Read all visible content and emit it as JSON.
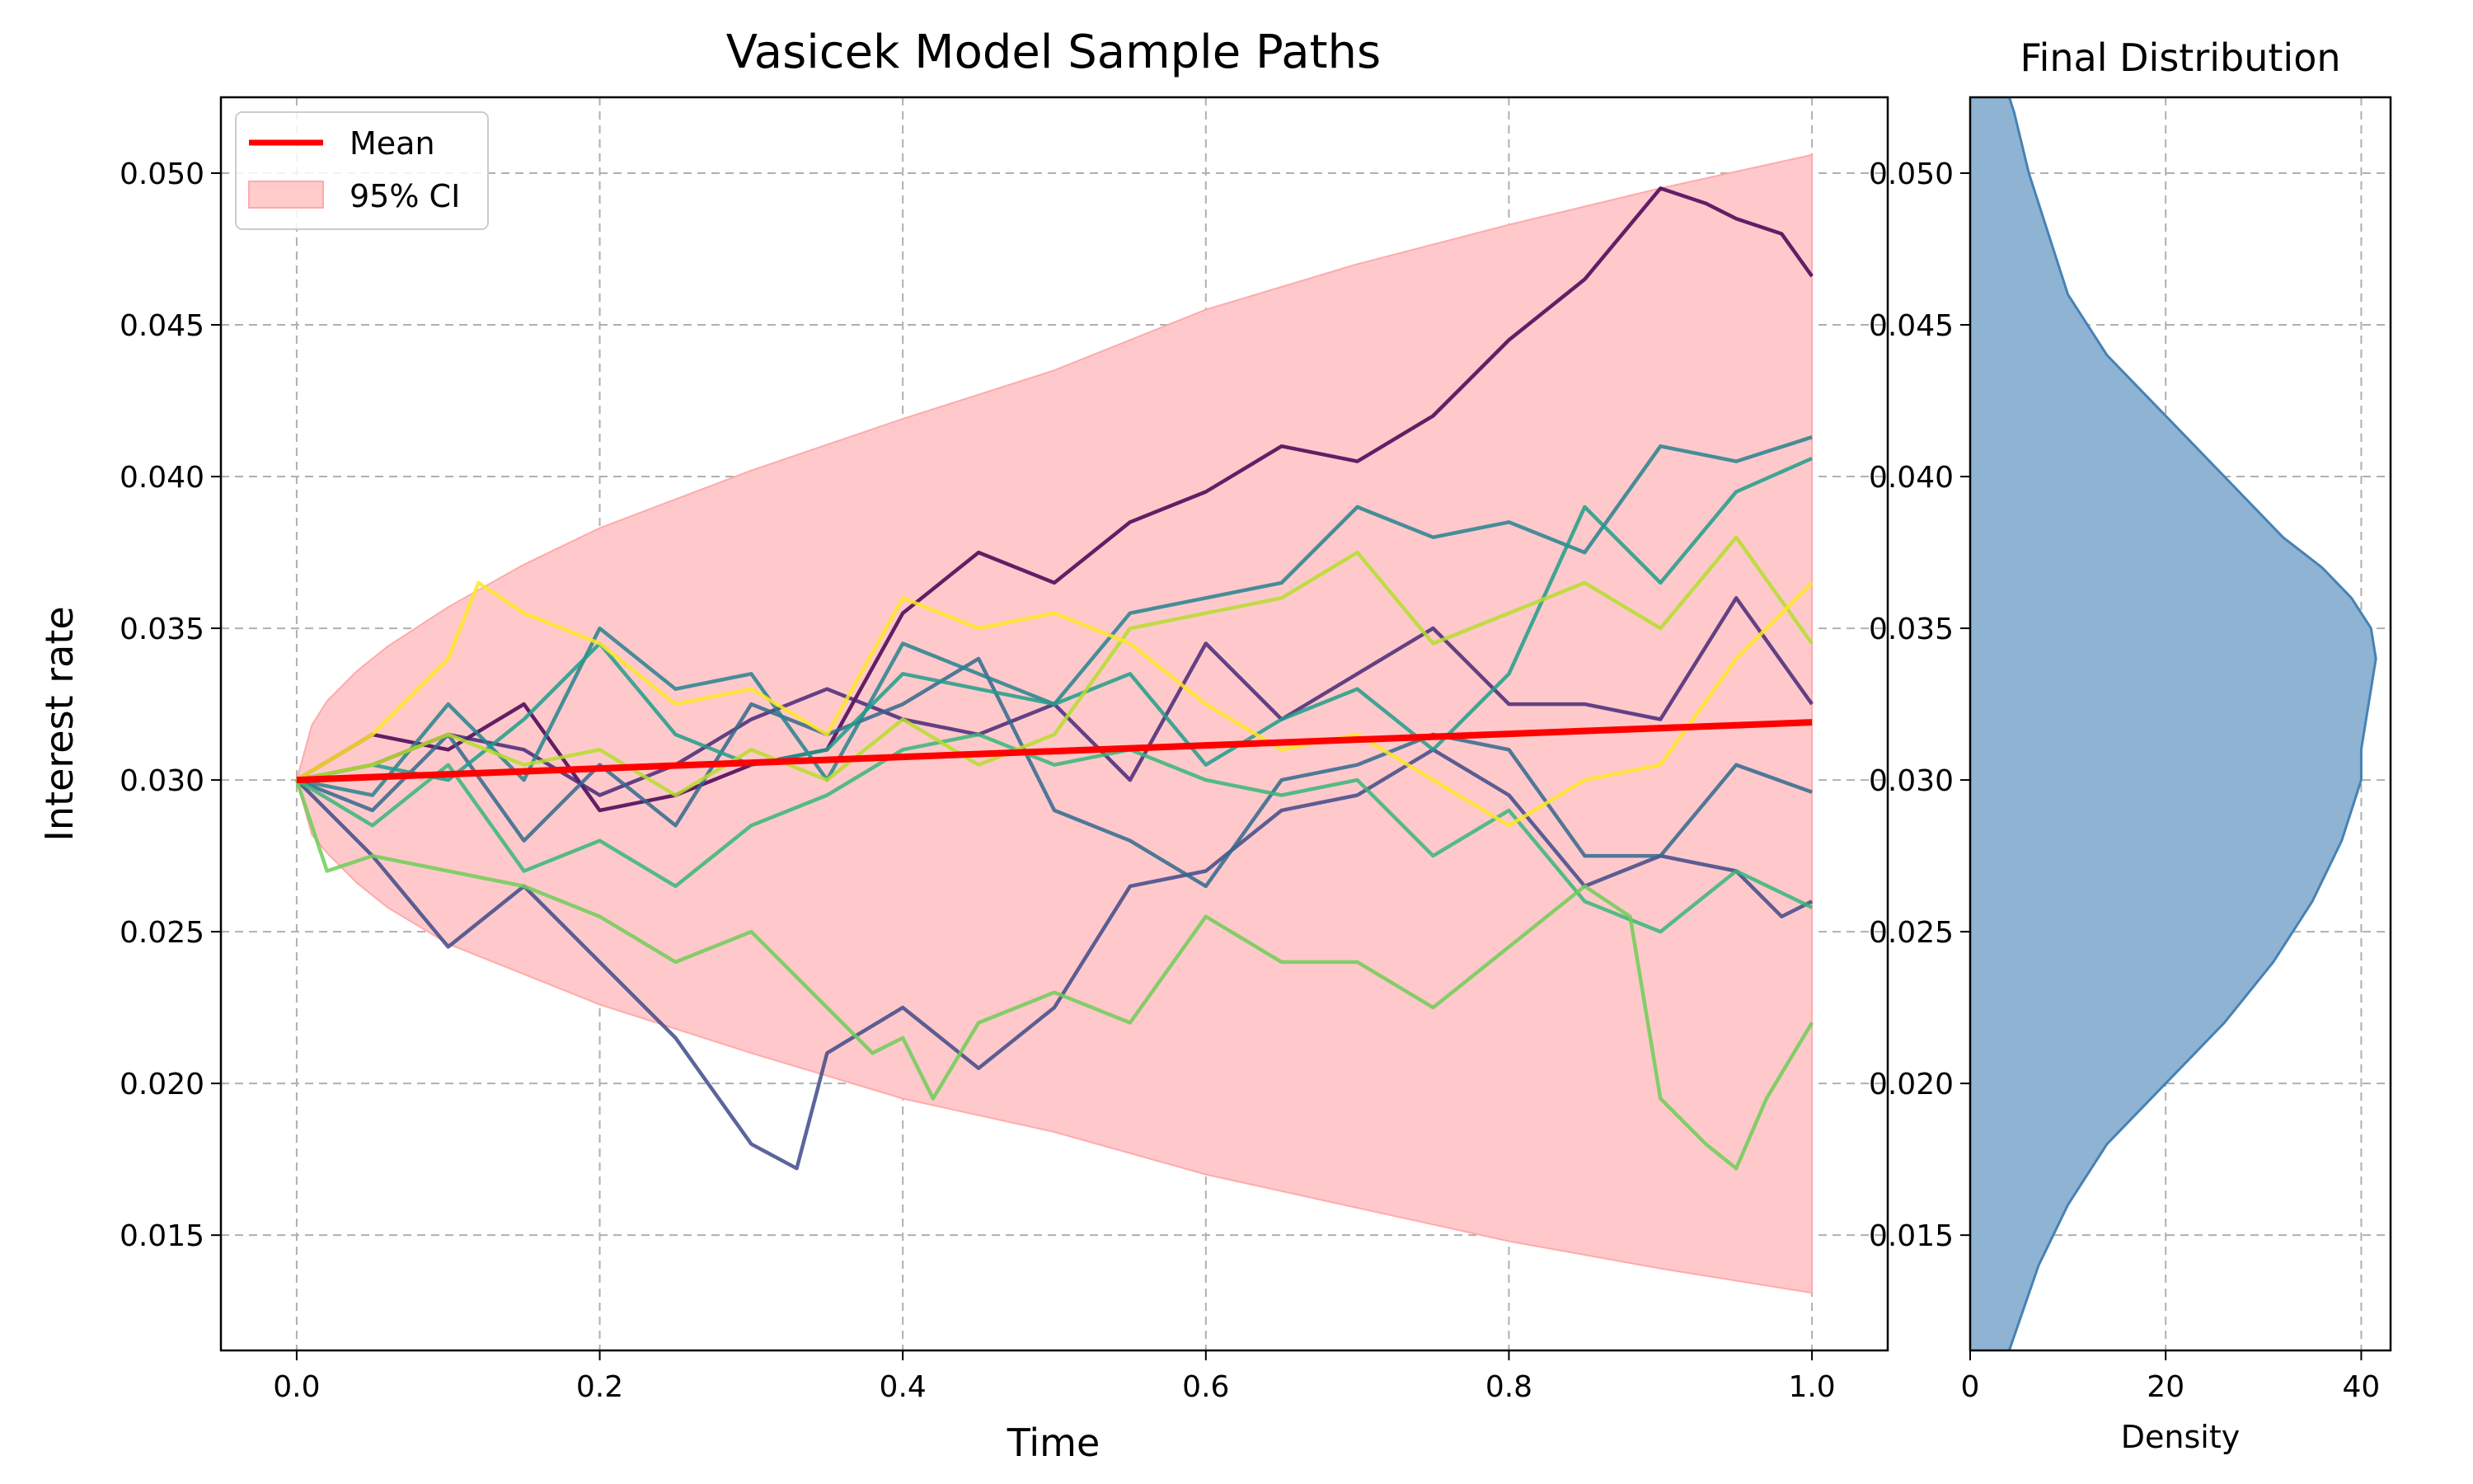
{
  "chart_data": [
    {
      "type": "line",
      "title": "Vasicek Model Sample Paths",
      "xlabel": "Time",
      "ylabel": "Interest rate",
      "xlim": [
        -0.05,
        1.05
      ],
      "ylim": [
        0.0112,
        0.0525
      ],
      "xticks": [
        0.0,
        0.2,
        0.4,
        0.6,
        0.8,
        1.0
      ],
      "xtick_labels": [
        "0.0",
        "0.2",
        "0.4",
        "0.6",
        "0.8",
        "1.0"
      ],
      "yticks": [
        0.015,
        0.02,
        0.025,
        0.03,
        0.035,
        0.04,
        0.045,
        0.05
      ],
      "ytick_labels": [
        "0.015",
        "0.020",
        "0.025",
        "0.030",
        "0.035",
        "0.040",
        "0.045",
        "0.050"
      ],
      "grid": true,
      "legend": {
        "placement": "top-left",
        "entries": [
          {
            "label": "Mean",
            "color": "#ff0000",
            "kind": "line"
          },
          {
            "label": "95% CI",
            "color": "#ffcbcb",
            "kind": "patch"
          }
        ]
      },
      "mean": {
        "name": "Mean",
        "color": "#ff0000",
        "x": [
          0.0,
          1.0
        ],
        "y": [
          0.03,
          0.0319
        ]
      },
      "ci": {
        "name": "95% CI",
        "color": "#ffc9cb",
        "edge_color": "#ffaaaa",
        "x": [
          0.0,
          0.01,
          0.02,
          0.04,
          0.06,
          0.1,
          0.15,
          0.2,
          0.3,
          0.4,
          0.5,
          0.6,
          0.7,
          0.8,
          0.9,
          1.0
        ],
        "upper": [
          0.03,
          0.0318,
          0.0326,
          0.0336,
          0.0344,
          0.0357,
          0.0371,
          0.0383,
          0.0402,
          0.0419,
          0.0435,
          0.0455,
          0.047,
          0.0483,
          0.0495,
          0.0506
        ],
        "lower": [
          0.03,
          0.0282,
          0.0276,
          0.0266,
          0.0258,
          0.0246,
          0.0236,
          0.0226,
          0.021,
          0.0195,
          0.0184,
          0.017,
          0.0159,
          0.0148,
          0.0139,
          0.0131
        ]
      },
      "series": [
        {
          "color": "#440154",
          "x": [
            0,
            0.05,
            0.1,
            0.15,
            0.2,
            0.25,
            0.3,
            0.35,
            0.4,
            0.45,
            0.5,
            0.55,
            0.6,
            0.65,
            0.7,
            0.75,
            0.8,
            0.85,
            0.9,
            0.93,
            0.95,
            0.98,
            1.0
          ],
          "y": [
            0.03,
            0.0315,
            0.031,
            0.0325,
            0.029,
            0.0295,
            0.0305,
            0.031,
            0.0355,
            0.0375,
            0.0365,
            0.0385,
            0.0395,
            0.041,
            0.0405,
            0.042,
            0.0445,
            0.0465,
            0.0495,
            0.049,
            0.0485,
            0.048,
            0.0466
          ]
        },
        {
          "color": "#482878",
          "x": [
            0,
            0.05,
            0.1,
            0.15,
            0.2,
            0.25,
            0.3,
            0.35,
            0.4,
            0.45,
            0.5,
            0.55,
            0.6,
            0.65,
            0.7,
            0.75,
            0.8,
            0.85,
            0.9,
            0.95,
            1.0
          ],
          "y": [
            0.03,
            0.0305,
            0.0315,
            0.031,
            0.0295,
            0.0305,
            0.032,
            0.033,
            0.032,
            0.0315,
            0.0325,
            0.03,
            0.0345,
            0.032,
            0.0335,
            0.035,
            0.0325,
            0.0325,
            0.032,
            0.036,
            0.0325
          ]
        },
        {
          "color": "#3e4a89",
          "x": [
            0,
            0.05,
            0.1,
            0.15,
            0.2,
            0.25,
            0.3,
            0.33,
            0.35,
            0.4,
            0.45,
            0.5,
            0.55,
            0.6,
            0.65,
            0.7,
            0.75,
            0.8,
            0.85,
            0.9,
            0.95,
            0.98,
            1.0
          ],
          "y": [
            0.03,
            0.0275,
            0.0245,
            0.0265,
            0.024,
            0.0215,
            0.018,
            0.0172,
            0.021,
            0.0225,
            0.0205,
            0.0225,
            0.0265,
            0.027,
            0.029,
            0.0295,
            0.031,
            0.0295,
            0.0265,
            0.0275,
            0.027,
            0.0255,
            0.026
          ]
        },
        {
          "color": "#31688e",
          "x": [
            0,
            0.05,
            0.1,
            0.15,
            0.2,
            0.25,
            0.3,
            0.35,
            0.4,
            0.45,
            0.5,
            0.55,
            0.6,
            0.65,
            0.7,
            0.75,
            0.8,
            0.85,
            0.9,
            0.95,
            1.0
          ],
          "y": [
            0.03,
            0.029,
            0.0315,
            0.028,
            0.0305,
            0.0285,
            0.0325,
            0.0315,
            0.0325,
            0.034,
            0.029,
            0.028,
            0.0265,
            0.03,
            0.0305,
            0.0315,
            0.031,
            0.0275,
            0.0275,
            0.0305,
            0.0296
          ]
        },
        {
          "color": "#26828e",
          "x": [
            0,
            0.05,
            0.1,
            0.15,
            0.2,
            0.25,
            0.3,
            0.35,
            0.4,
            0.45,
            0.5,
            0.55,
            0.6,
            0.65,
            0.7,
            0.75,
            0.8,
            0.85,
            0.9,
            0.95,
            1.0
          ],
          "y": [
            0.03,
            0.0295,
            0.0325,
            0.03,
            0.035,
            0.033,
            0.0335,
            0.03,
            0.0345,
            0.0335,
            0.0325,
            0.0355,
            0.036,
            0.0365,
            0.039,
            0.038,
            0.0385,
            0.0375,
            0.041,
            0.0405,
            0.0413
          ]
        },
        {
          "color": "#1f9e89",
          "x": [
            0,
            0.05,
            0.1,
            0.15,
            0.2,
            0.25,
            0.3,
            0.35,
            0.4,
            0.45,
            0.5,
            0.55,
            0.6,
            0.65,
            0.7,
            0.75,
            0.8,
            0.85,
            0.9,
            0.95,
            1.0
          ],
          "y": [
            0.03,
            0.0305,
            0.03,
            0.032,
            0.0345,
            0.0315,
            0.0305,
            0.031,
            0.0335,
            0.033,
            0.0325,
            0.0335,
            0.0305,
            0.032,
            0.033,
            0.031,
            0.0335,
            0.039,
            0.0365,
            0.0395,
            0.0406
          ]
        },
        {
          "color": "#35b779",
          "x": [
            0,
            0.05,
            0.1,
            0.15,
            0.2,
            0.25,
            0.3,
            0.35,
            0.4,
            0.45,
            0.5,
            0.55,
            0.6,
            0.65,
            0.7,
            0.75,
            0.8,
            0.85,
            0.9,
            0.95,
            1.0
          ],
          "y": [
            0.03,
            0.0285,
            0.0305,
            0.027,
            0.028,
            0.0265,
            0.0285,
            0.0295,
            0.031,
            0.0315,
            0.0305,
            0.031,
            0.03,
            0.0295,
            0.03,
            0.0275,
            0.029,
            0.026,
            0.025,
            0.027,
            0.0258
          ]
        },
        {
          "color": "#6ece58",
          "x": [
            0,
            0.02,
            0.05,
            0.1,
            0.15,
            0.2,
            0.25,
            0.3,
            0.35,
            0.38,
            0.4,
            0.42,
            0.45,
            0.5,
            0.55,
            0.6,
            0.65,
            0.7,
            0.75,
            0.8,
            0.85,
            0.88,
            0.9,
            0.93,
            0.95,
            0.97,
            1.0
          ],
          "y": [
            0.03,
            0.027,
            0.0275,
            0.027,
            0.0265,
            0.0255,
            0.024,
            0.025,
            0.0225,
            0.021,
            0.0215,
            0.0195,
            0.022,
            0.023,
            0.022,
            0.0255,
            0.024,
            0.024,
            0.0225,
            0.0245,
            0.0265,
            0.0255,
            0.0195,
            0.018,
            0.0172,
            0.0195,
            0.022
          ]
        },
        {
          "color": "#b5de2b",
          "x": [
            0,
            0.05,
            0.1,
            0.15,
            0.2,
            0.25,
            0.3,
            0.35,
            0.4,
            0.45,
            0.5,
            0.55,
            0.6,
            0.65,
            0.7,
            0.75,
            0.8,
            0.85,
            0.9,
            0.95,
            1.0
          ],
          "y": [
            0.03,
            0.0305,
            0.0315,
            0.0305,
            0.031,
            0.0295,
            0.031,
            0.03,
            0.032,
            0.0305,
            0.0315,
            0.035,
            0.0355,
            0.036,
            0.0375,
            0.0345,
            0.0355,
            0.0365,
            0.035,
            0.038,
            0.0345
          ]
        },
        {
          "color": "#fde725",
          "x": [
            0,
            0.05,
            0.1,
            0.12,
            0.15,
            0.2,
            0.25,
            0.3,
            0.35,
            0.4,
            0.45,
            0.5,
            0.55,
            0.6,
            0.65,
            0.7,
            0.75,
            0.8,
            0.85,
            0.9,
            0.95,
            1.0
          ],
          "y": [
            0.03,
            0.0315,
            0.034,
            0.0365,
            0.0355,
            0.0345,
            0.0325,
            0.033,
            0.0315,
            0.036,
            0.035,
            0.0355,
            0.0345,
            0.0325,
            0.031,
            0.0315,
            0.03,
            0.0285,
            0.03,
            0.0305,
            0.034,
            0.0365
          ]
        }
      ]
    },
    {
      "type": "area",
      "title": "Final Distribution",
      "xlabel": "Density",
      "ylabel": "",
      "orientation": "horizontal",
      "xlim": [
        0,
        43
      ],
      "ylim": [
        0.0112,
        0.0525
      ],
      "xticks": [
        0,
        20,
        40
      ],
      "xtick_labels": [
        "0",
        "20",
        "40"
      ],
      "yticks": [
        0.015,
        0.02,
        0.025,
        0.03,
        0.035,
        0.04,
        0.045,
        0.05
      ],
      "ytick_labels": [
        "0.015",
        "0.020",
        "0.025",
        "0.030",
        "0.035",
        "0.040",
        "0.045",
        "0.050"
      ],
      "grid": true,
      "fill_color": "#8fb3d3",
      "line_color": "#4682b4",
      "density": {
        "y": [
          0.0112,
          0.014,
          0.016,
          0.018,
          0.02,
          0.022,
          0.024,
          0.026,
          0.028,
          0.03,
          0.031,
          0.032,
          0.033,
          0.034,
          0.035,
          0.036,
          0.037,
          0.038,
          0.04,
          0.042,
          0.044,
          0.046,
          0.048,
          0.05,
          0.052,
          0.0525
        ],
        "x": [
          4,
          7,
          10,
          14,
          20,
          26,
          31,
          35,
          38,
          40,
          40,
          40.5,
          41,
          41.5,
          41,
          39,
          36,
          32,
          26,
          20,
          14,
          10,
          8,
          6,
          4.5,
          4
        ]
      }
    }
  ]
}
